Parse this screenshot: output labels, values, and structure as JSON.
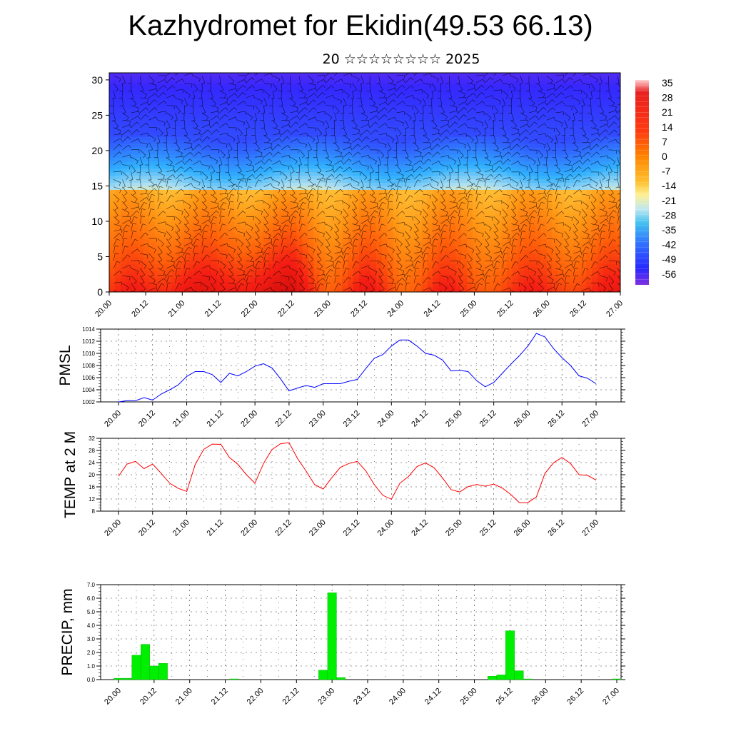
{
  "title": "Kazhydromet for Ekidin(49.53 66.13)",
  "subtitle": "20 ☆☆☆☆☆☆☆☆ 2025",
  "chart_data": [
    {
      "type": "heatmap",
      "title": "",
      "xlabel": "",
      "ylabel": "",
      "x_tick_labels": [
        "20.00",
        "20.12",
        "21.00",
        "21.12",
        "22.00",
        "22.12",
        "23.00",
        "23.12",
        "24.00",
        "24.12",
        "25.00",
        "25.12",
        "26.00",
        "26.12",
        "27.00"
      ],
      "y_ticks": [
        0,
        5,
        10,
        15,
        20,
        25,
        30
      ],
      "ylim": [
        0,
        31
      ],
      "colorbar_labels": [
        35,
        28,
        21,
        14,
        7,
        0,
        -7,
        -14,
        -21,
        -28,
        -35,
        -42,
        -49,
        -56
      ],
      "colorbar_range": [
        -63,
        42
      ],
      "surface_temperature_by_halfday": [
        24,
        27,
        33,
        28,
        35,
        34,
        22,
        28,
        20,
        27,
        22,
        25,
        26,
        26,
        28
      ],
      "description": "Air temperature (color) with wind barbs vs height and time"
    },
    {
      "type": "line",
      "title": "",
      "ylabel": "PMSL",
      "x_tick_labels": [
        "20.00",
        "20.12",
        "21.00",
        "21.12",
        "22.00",
        "22.12",
        "23.00",
        "23.12",
        "24.00",
        "24.12",
        "25.00",
        "25.12",
        "26.00",
        "26.12",
        "27.00"
      ],
      "y_ticks": [
        1002,
        1004,
        1006,
        1008,
        1010,
        1012,
        1014
      ],
      "ylim": [
        1002,
        1014
      ],
      "line_color": "#0000ff",
      "x": [
        0,
        1,
        2,
        3,
        4,
        5,
        6,
        7,
        8,
        9,
        10,
        11,
        12,
        13,
        14,
        15,
        16,
        17,
        18,
        19,
        20,
        21,
        22,
        23,
        24,
        25,
        26,
        27,
        28,
        29,
        30,
        31,
        32,
        33,
        34,
        35,
        36,
        37,
        38,
        39,
        40,
        41,
        42,
        43,
        44,
        45,
        46,
        47,
        48,
        49,
        50,
        51,
        52,
        53,
        54,
        55,
        56
      ],
      "values": [
        1002.0,
        1002.2,
        1002.2,
        1002.7,
        1002.3,
        1003.3,
        1004.0,
        1004.8,
        1006.2,
        1007.0,
        1007.0,
        1006.5,
        1005.2,
        1006.7,
        1006.3,
        1007.0,
        1007.9,
        1008.3,
        1007.6,
        1005.8,
        1003.8,
        1004.3,
        1004.7,
        1004.4,
        1005.0,
        1005.0,
        1005.0,
        1005.4,
        1005.7,
        1007.5,
        1009.2,
        1009.8,
        1011.2,
        1012.2,
        1012.2,
        1011.2,
        1010.0,
        1009.7,
        1008.9,
        1007.1,
        1007.2,
        1007.0,
        1005.5,
        1004.5,
        1005.2,
        1006.7,
        1008.2,
        1009.6,
        1011.2,
        1013.3,
        1012.7,
        1010.8,
        1009.3,
        1008.0,
        1006.3,
        1005.9,
        1005.0
      ]
    },
    {
      "type": "line",
      "title": "",
      "ylabel": "TEMP at 2 M",
      "x_tick_labels": [
        "20.00",
        "20.12",
        "21.00",
        "21.12",
        "22.00",
        "22.12",
        "23.00",
        "23.12",
        "24.00",
        "24.12",
        "25.00",
        "25.12",
        "26.00",
        "26.12",
        "27.00"
      ],
      "y_ticks": [
        8,
        12,
        16,
        20,
        24,
        28,
        32
      ],
      "ylim": [
        8,
        32
      ],
      "line_color": "#ff0000",
      "x": [
        0,
        1,
        2,
        3,
        4,
        5,
        6,
        7,
        8,
        9,
        10,
        11,
        12,
        13,
        14,
        15,
        16,
        17,
        18,
        19,
        20,
        21,
        22,
        23,
        24,
        25,
        26,
        27,
        28,
        29,
        30,
        31,
        32,
        33,
        34,
        35,
        36,
        37,
        38,
        39,
        40,
        41,
        42,
        43,
        44,
        45,
        46,
        47,
        48,
        49,
        50,
        51,
        52,
        53,
        54,
        55,
        56
      ],
      "values": [
        19.5,
        23.5,
        24.4,
        22.0,
        23.5,
        20.5,
        17.2,
        15.5,
        14.5,
        23.4,
        28.4,
        30.1,
        30.0,
        25.7,
        23.4,
        20.0,
        17.2,
        23.7,
        28.3,
        30.2,
        30.6,
        25.3,
        21.2,
        16.7,
        15.3,
        19.0,
        22.4,
        23.7,
        24.4,
        21.3,
        16.7,
        13.2,
        11.9,
        17.2,
        19.4,
        22.7,
        23.9,
        22.3,
        18.9,
        15.1,
        14.3,
        16.1,
        16.8,
        16.2,
        16.9,
        15.6,
        13.5,
        10.8,
        10.8,
        12.7,
        20.4,
        23.9,
        25.7,
        23.7,
        20.0,
        19.8,
        18.2
      ]
    },
    {
      "type": "bar",
      "title": "",
      "ylabel": "PRECIP, mm",
      "x_tick_labels": [
        "20.00",
        "20.12",
        "21.00",
        "21.12",
        "22.00",
        "22.12",
        "23.00",
        "23.12",
        "24.00",
        "24.12",
        "25.00",
        "25.12",
        "26.00",
        "26.12",
        "27.00"
      ],
      "y_ticks": [
        0.0,
        1.0,
        2.0,
        3.0,
        4.0,
        5.0,
        6.0,
        7.0
      ],
      "ylim": [
        0,
        7
      ],
      "bar_color": "#00ee00",
      "x": [
        0,
        1,
        2,
        3,
        4,
        5,
        6,
        7,
        8,
        9,
        10,
        11,
        12,
        13,
        14,
        15,
        16,
        17,
        18,
        19,
        20,
        21,
        22,
        23,
        24,
        25,
        26,
        27,
        28,
        29,
        30,
        31,
        32,
        33,
        34,
        35,
        36,
        37,
        38,
        39,
        40,
        41,
        42,
        43,
        44,
        45,
        46,
        47,
        48,
        49,
        50,
        51,
        52,
        53,
        54,
        55,
        56
      ],
      "values": [
        0.1,
        0.1,
        1.8,
        2.6,
        1.0,
        1.2,
        0,
        0,
        0,
        0,
        0,
        0,
        0,
        0.05,
        0,
        0,
        0,
        0,
        0,
        0,
        0,
        0,
        0,
        0.7,
        6.4,
        0.15,
        0,
        0,
        0,
        0,
        0,
        0,
        0,
        0,
        0,
        0,
        0,
        0,
        0,
        0,
        0,
        0,
        0.25,
        0.35,
        3.6,
        0.65,
        0.05,
        0,
        0,
        0,
        0,
        0,
        0,
        0,
        0,
        0,
        0.05
      ]
    }
  ]
}
